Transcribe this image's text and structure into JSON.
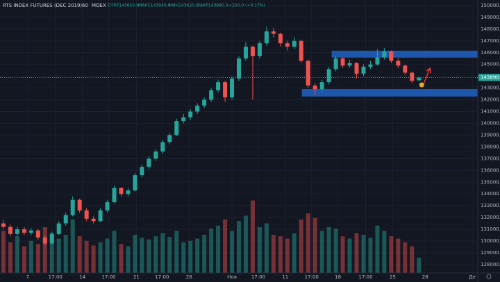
{
  "chart_data": {
    "type": "candlestick",
    "header": {
      "symbol": "RTS INDEX FUTURES (DEC 2019)",
      "interval": "60",
      "exchange": "MOEX",
      "ohlc": [
        "ОТКР143650.0",
        "МАКС143940.0",
        "МИН143620.0",
        "ЗАКР143890.0"
      ],
      "change": "+250.0 (+0.17%)"
    },
    "up_color": "#26a69a",
    "down_color": "#ef5350",
    "grid": true,
    "xlim": [
      -0.5,
      68.5
    ],
    "ylim": [
      127290,
      150470
    ],
    "volume_ylim": [
      0,
      100
    ],
    "xticks": [
      {
        "value": 3.5,
        "label": "7"
      },
      {
        "value": 7.5,
        "label": "17:00"
      },
      {
        "value": 11.4,
        "label": "14"
      },
      {
        "value": 15.2,
        "label": "17:00"
      },
      {
        "value": 19.2,
        "label": "21"
      },
      {
        "value": 22.9,
        "label": "17:00"
      },
      {
        "value": 26.8,
        "label": "28"
      },
      {
        "value": 33,
        "label": "Ноя"
      },
      {
        "value": 36.8,
        "label": "17:00"
      },
      {
        "value": 40.7,
        "label": "11"
      },
      {
        "value": 44.5,
        "label": "17:00"
      },
      {
        "value": 48.3,
        "label": "18"
      },
      {
        "value": 52.3,
        "label": "17:00"
      },
      {
        "value": 56.2,
        "label": "25"
      },
      {
        "value": 60.9,
        "label": "28"
      },
      {
        "value": 67.7,
        "label": "Де"
      }
    ],
    "yticks": [
      {
        "value": 128000,
        "label": "128000.0"
      },
      {
        "value": 129000,
        "label": "129000.0"
      },
      {
        "value": 130000,
        "label": "130000.0"
      },
      {
        "value": 131000,
        "label": "131000.0"
      },
      {
        "value": 132000,
        "label": "132000.0"
      },
      {
        "value": 133000,
        "label": "133000.0"
      },
      {
        "value": 134000,
        "label": "134000.0"
      },
      {
        "value": 135000,
        "label": "135000.0"
      },
      {
        "value": 136000,
        "label": "136000.0"
      },
      {
        "value": 137000,
        "label": "137000.0"
      },
      {
        "value": 138000,
        "label": "138000.0"
      },
      {
        "value": 139000,
        "label": "139000.0"
      },
      {
        "value": 140000,
        "label": "140000.0"
      },
      {
        "value": 141000,
        "label": "141000.0"
      },
      {
        "value": 142000,
        "label": "142000.0"
      },
      {
        "value": 143000,
        "label": "143000.0"
      },
      {
        "value": 144000,
        "label": "144000.0"
      },
      {
        "value": 145000,
        "label": "145000.0"
      },
      {
        "value": 146000,
        "label": "146000.0"
      },
      {
        "value": 147000,
        "label": "147000.0"
      },
      {
        "value": 148000,
        "label": "148000.0"
      },
      {
        "value": 149000,
        "label": "149000.0"
      },
      {
        "value": 150000,
        "label": "150000.0"
      }
    ],
    "last_price": {
      "value": 143890,
      "label": "143890.0"
    },
    "zones": [
      {
        "range": [
          145575,
          146165
        ],
        "start": 47.4,
        "color": "#1e63c4"
      },
      {
        "range": [
          142270,
          142920
        ],
        "start": 43.1,
        "color": "#1e63c4"
      }
    ],
    "ohlc": [
      [
        131500,
        131800,
        131000,
        131200
      ],
      [
        131200,
        131400,
        130400,
        130600
      ],
      [
        130600,
        131200,
        130400,
        131000
      ],
      [
        131000,
        131200,
        130500,
        130700
      ],
      [
        130700,
        131100,
        130500,
        130900
      ],
      [
        130900,
        131000,
        130100,
        130300
      ],
      [
        130300,
        130500,
        129600,
        129800
      ],
      [
        129800,
        130800,
        129700,
        130600
      ],
      [
        130600,
        131700,
        130500,
        131500
      ],
      [
        131500,
        132400,
        131300,
        132200
      ],
      [
        132200,
        133800,
        132100,
        133500
      ],
      [
        133500,
        133600,
        132400,
        132600
      ],
      [
        132600,
        132800,
        131700,
        131900
      ],
      [
        131900,
        132100,
        131500,
        131700
      ],
      [
        131700,
        132800,
        131600,
        132600
      ],
      [
        132600,
        133500,
        132400,
        133300
      ],
      [
        133300,
        134700,
        133200,
        134500
      ],
      [
        134500,
        134600,
        133800,
        134000
      ],
      [
        134000,
        134500,
        133800,
        134300
      ],
      [
        134300,
        135800,
        134200,
        135600
      ],
      [
        135600,
        136500,
        135400,
        136300
      ],
      [
        136300,
        137200,
        136100,
        137000
      ],
      [
        137000,
        137800,
        136800,
        137600
      ],
      [
        137600,
        138600,
        137400,
        138400
      ],
      [
        138400,
        139200,
        138200,
        139000
      ],
      [
        139000,
        140400,
        138900,
        140200
      ],
      [
        140200,
        140800,
        140000,
        140500
      ],
      [
        140500,
        141200,
        140300,
        141000
      ],
      [
        141000,
        141700,
        140800,
        141500
      ],
      [
        141500,
        142200,
        141300,
        142000
      ],
      [
        142000,
        143000,
        141800,
        142800
      ],
      [
        142800,
        143700,
        142600,
        143500
      ],
      [
        143500,
        143600,
        141800,
        142200
      ],
      [
        142200,
        144000,
        142000,
        143800
      ],
      [
        143800,
        145700,
        143600,
        145500
      ],
      [
        145500,
        146900,
        145300,
        146500
      ],
      [
        146500,
        146600,
        142000,
        145700
      ],
      [
        145700,
        147000,
        145500,
        146800
      ],
      [
        146800,
        148200,
        146600,
        147800
      ],
      [
        147800,
        148100,
        147300,
        147600
      ],
      [
        147600,
        147700,
        146500,
        146800
      ],
      [
        146800,
        147000,
        146200,
        146500
      ],
      [
        146500,
        147300,
        146300,
        147000
      ],
      [
        147000,
        147100,
        145100,
        145300
      ],
      [
        145300,
        145400,
        143000,
        143200
      ],
      [
        143200,
        143400,
        142400,
        142900
      ],
      [
        142900,
        143700,
        142700,
        143500
      ],
      [
        143500,
        144800,
        143300,
        144600
      ],
      [
        144600,
        145700,
        144400,
        145500
      ],
      [
        145500,
        145600,
        144700,
        144900
      ],
      [
        144900,
        145400,
        144700,
        145100
      ],
      [
        145100,
        145200,
        143800,
        144200
      ],
      [
        144200,
        145000,
        144000,
        144800
      ],
      [
        144800,
        145300,
        144600,
        145000
      ],
      [
        145000,
        146300,
        144900,
        145600
      ],
      [
        145600,
        146400,
        145400,
        146100
      ],
      [
        146100,
        146200,
        145100,
        145300
      ],
      [
        145300,
        145500,
        144700,
        144900
      ],
      [
        144900,
        145000,
        144100,
        144300
      ],
      [
        144300,
        144400,
        143400,
        143600
      ],
      [
        143650,
        143940,
        143620,
        143890
      ]
    ],
    "volumes": [
      55,
      40,
      48,
      35,
      42,
      38,
      60,
      52,
      45,
      50,
      70,
      48,
      42,
      36,
      40,
      45,
      55,
      38,
      35,
      50,
      46,
      44,
      48,
      52,
      47,
      55,
      40,
      42,
      45,
      50,
      58,
      62,
      70,
      55,
      68,
      75,
      95,
      60,
      65,
      50,
      48,
      45,
      52,
      70,
      78,
      72,
      55,
      60,
      58,
      48,
      45,
      52,
      50,
      46,
      62,
      55,
      48,
      45,
      40,
      35,
      20
    ]
  }
}
